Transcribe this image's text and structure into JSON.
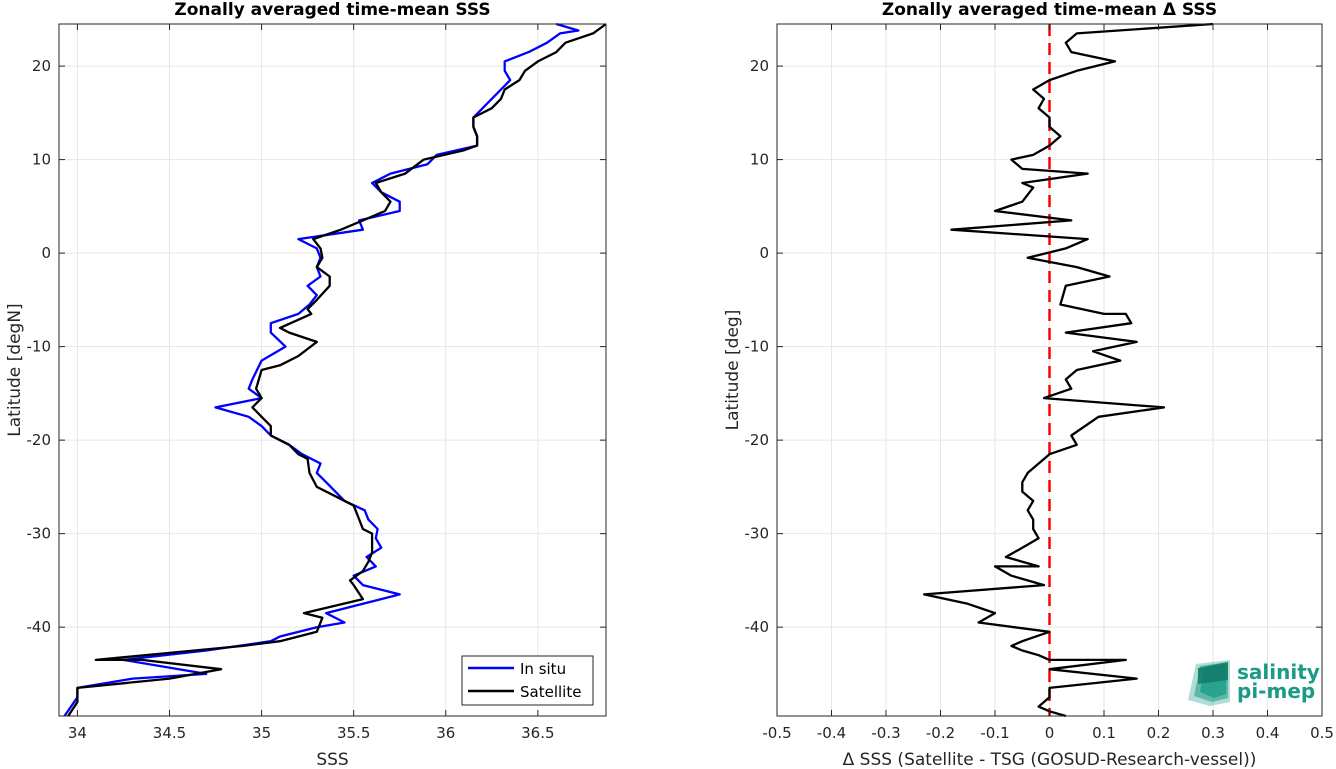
{
  "chart_data": [
    {
      "type": "line",
      "title": "Zonally averaged time-mean SSS",
      "xlabel": "SSS",
      "ylabel": "Latitude [degN]",
      "xlim": [
        33.9,
        36.87
      ],
      "ylim": [
        -49.5,
        24.5
      ],
      "xticks": [
        34,
        34.5,
        35,
        35.5,
        36,
        36.5
      ],
      "xtick_labels": [
        "34",
        "34.5",
        "35",
        "35.5",
        "36",
        "36.5"
      ],
      "yticks": [
        -40,
        -30,
        -20,
        -10,
        0,
        10,
        20
      ],
      "ytick_labels": [
        "-40",
        "-30",
        "-20",
        "-10",
        "0",
        "10",
        "20"
      ],
      "grid": true,
      "legend_position": "bottom-right",
      "colors": {
        "In situ": "#0000ff",
        "Satellite": "#000000"
      },
      "series": [
        {
          "name": "In situ",
          "points": [
            [
              33.93,
              -49.5
            ],
            [
              34.0,
              -47.5
            ],
            [
              34.0,
              -46.5
            ],
            [
              34.3,
              -45.5
            ],
            [
              34.7,
              -45.0
            ],
            [
              34.25,
              -43.5
            ],
            [
              34.7,
              -42.5
            ],
            [
              35.05,
              -41.5
            ],
            [
              35.1,
              -41.0
            ],
            [
              35.3,
              -40.0
            ],
            [
              35.45,
              -39.5
            ],
            [
              35.35,
              -38.5
            ],
            [
              35.55,
              -37.5
            ],
            [
              35.75,
              -36.5
            ],
            [
              35.55,
              -35.5
            ],
            [
              35.5,
              -34.5
            ],
            [
              35.62,
              -33.5
            ],
            [
              35.57,
              -32.5
            ],
            [
              35.65,
              -31.5
            ],
            [
              35.62,
              -30.5
            ],
            [
              35.63,
              -29.5
            ],
            [
              35.58,
              -28.5
            ],
            [
              35.56,
              -27.5
            ],
            [
              35.45,
              -26.5
            ],
            [
              35.4,
              -25.5
            ],
            [
              35.35,
              -24.5
            ],
            [
              35.3,
              -23.5
            ],
            [
              35.32,
              -22.5
            ],
            [
              35.22,
              -21.5
            ],
            [
              35.15,
              -20.5
            ],
            [
              35.05,
              -19.5
            ],
            [
              35.0,
              -18.5
            ],
            [
              34.93,
              -17.5
            ],
            [
              34.75,
              -16.5
            ],
            [
              35.0,
              -15.5
            ],
            [
              34.93,
              -14.5
            ],
            [
              34.95,
              -13.5
            ],
            [
              35.0,
              -11.5
            ],
            [
              35.13,
              -10.0
            ],
            [
              35.05,
              -8.5
            ],
            [
              35.05,
              -7.5
            ],
            [
              35.2,
              -6.5
            ],
            [
              35.26,
              -5.5
            ],
            [
              35.3,
              -4.5
            ],
            [
              35.25,
              -3.5
            ],
            [
              35.32,
              -2.5
            ],
            [
              35.3,
              -1.5
            ],
            [
              35.32,
              -0.5
            ],
            [
              35.3,
              0.5
            ],
            [
              35.2,
              1.5
            ],
            [
              35.55,
              2.5
            ],
            [
              35.53,
              3.5
            ],
            [
              35.75,
              4.5
            ],
            [
              35.75,
              5.5
            ],
            [
              35.65,
              6.5
            ],
            [
              35.6,
              7.5
            ],
            [
              35.7,
              8.5
            ],
            [
              35.9,
              9.5
            ],
            [
              35.95,
              10.5
            ],
            [
              36.17,
              11.5
            ],
            [
              36.17,
              12.5
            ],
            [
              36.15,
              13.5
            ],
            [
              36.15,
              14.5
            ],
            [
              36.2,
              15.5
            ],
            [
              36.25,
              16.5
            ],
            [
              36.3,
              17.5
            ],
            [
              36.35,
              18.5
            ],
            [
              36.32,
              19.5
            ],
            [
              36.32,
              20.5
            ],
            [
              36.45,
              21.5
            ],
            [
              36.55,
              22.5
            ],
            [
              36.62,
              23.5
            ],
            [
              36.72,
              23.8
            ],
            [
              36.6,
              24.5
            ]
          ]
        },
        {
          "name": "Satellite",
          "points": [
            [
              33.95,
              -49.5
            ],
            [
              34.0,
              -48.0
            ],
            [
              34.0,
              -46.5
            ],
            [
              34.5,
              -45.5
            ],
            [
              34.78,
              -44.5
            ],
            [
              34.35,
              -43.5
            ],
            [
              34.1,
              -43.5
            ],
            [
              34.9,
              -42.0
            ],
            [
              35.1,
              -41.5
            ],
            [
              35.3,
              -40.5
            ],
            [
              35.33,
              -39.0
            ],
            [
              35.23,
              -38.5
            ],
            [
              35.55,
              -37.0
            ],
            [
              35.5,
              -35.5
            ],
            [
              35.48,
              -35.0
            ],
            [
              35.55,
              -34.0
            ],
            [
              35.58,
              -33.0
            ],
            [
              35.6,
              -32.0
            ],
            [
              35.6,
              -30.0
            ],
            [
              35.55,
              -29.5
            ],
            [
              35.52,
              -28.0
            ],
            [
              35.5,
              -27.0
            ],
            [
              35.4,
              -26.0
            ],
            [
              35.3,
              -25.0
            ],
            [
              35.26,
              -23.5
            ],
            [
              35.25,
              -22.0
            ],
            [
              35.2,
              -21.5
            ],
            [
              35.15,
              -20.5
            ],
            [
              35.05,
              -19.5
            ],
            [
              35.05,
              -18.5
            ],
            [
              35.0,
              -17.5
            ],
            [
              34.95,
              -16.5
            ],
            [
              35.0,
              -15.5
            ],
            [
              34.97,
              -14.5
            ],
            [
              35.0,
              -12.5
            ],
            [
              35.1,
              -12.0
            ],
            [
              35.2,
              -11.0
            ],
            [
              35.3,
              -9.5
            ],
            [
              35.15,
              -8.5
            ],
            [
              35.1,
              -8.0
            ],
            [
              35.27,
              -6.5
            ],
            [
              35.25,
              -6.0
            ],
            [
              35.3,
              -5.0
            ],
            [
              35.37,
              -3.5
            ],
            [
              35.37,
              -2.5
            ],
            [
              35.3,
              -1.5
            ],
            [
              35.33,
              -0.5
            ],
            [
              35.32,
              0.5
            ],
            [
              35.28,
              1.5
            ],
            [
              35.43,
              2.5
            ],
            [
              35.55,
              3.5
            ],
            [
              35.67,
              4.5
            ],
            [
              35.7,
              5.5
            ],
            [
              35.65,
              6.5
            ],
            [
              35.62,
              7.5
            ],
            [
              35.78,
              8.5
            ],
            [
              35.88,
              10.0
            ],
            [
              36.1,
              11.0
            ],
            [
              36.17,
              11.5
            ],
            [
              36.17,
              12.5
            ],
            [
              36.15,
              13.5
            ],
            [
              36.15,
              14.5
            ],
            [
              36.25,
              15.5
            ],
            [
              36.3,
              16.5
            ],
            [
              36.32,
              17.5
            ],
            [
              36.4,
              18.5
            ],
            [
              36.43,
              19.5
            ],
            [
              36.5,
              20.5
            ],
            [
              36.6,
              21.5
            ],
            [
              36.65,
              22.5
            ],
            [
              36.8,
              23.5
            ],
            [
              36.87,
              24.5
            ]
          ]
        }
      ]
    },
    {
      "type": "line",
      "title": "Zonally averaged time-mean Δ SSS",
      "xlabel": "Δ SSS (Satellite - TSG (GOSUD-Research-vessel))",
      "ylabel": "Latitude [deg]",
      "xlim": [
        -0.5,
        0.5
      ],
      "ylim": [
        -49.5,
        24.5
      ],
      "xticks": [
        -0.5,
        -0.4,
        -0.3,
        -0.2,
        -0.1,
        0,
        0.1,
        0.2,
        0.3,
        0.4,
        0.5
      ],
      "xtick_labels": [
        "-0.5",
        "-0.4",
        "-0.3",
        "-0.2",
        "-0.1",
        "0",
        "0.1",
        "0.2",
        "0.3",
        "0.4",
        "0.5"
      ],
      "yticks": [
        -40,
        -30,
        -20,
        -10,
        0,
        10,
        20
      ],
      "ytick_labels": [
        "-40",
        "-30",
        "-20",
        "-10",
        "0",
        "10",
        "20"
      ],
      "grid": true,
      "reference_line": {
        "x": 0,
        "color": "#ff0000",
        "style": "dashed"
      },
      "colors": {
        "line": "#000000"
      },
      "series": [
        {
          "points": [
            [
              0.3,
              24.5
            ],
            [
              0.05,
              23.5
            ],
            [
              0.03,
              22.5
            ],
            [
              0.04,
              21.5
            ],
            [
              0.12,
              20.5
            ],
            [
              0.05,
              19.5
            ],
            [
              0.0,
              18.5
            ],
            [
              -0.03,
              17.5
            ],
            [
              -0.01,
              16.5
            ],
            [
              -0.02,
              15.5
            ],
            [
              0.0,
              14.5
            ],
            [
              0.0,
              13.5
            ],
            [
              0.02,
              12.5
            ],
            [
              0.0,
              11.5
            ],
            [
              -0.03,
              10.5
            ],
            [
              -0.07,
              10.0
            ],
            [
              -0.05,
              9.0
            ],
            [
              0.07,
              8.5
            ],
            [
              -0.05,
              7.5
            ],
            [
              -0.03,
              7.0
            ],
            [
              -0.05,
              5.5
            ],
            [
              -0.1,
              4.5
            ],
            [
              0.04,
              3.5
            ],
            [
              -0.18,
              2.5
            ],
            [
              0.07,
              1.5
            ],
            [
              0.03,
              0.5
            ],
            [
              -0.04,
              -0.5
            ],
            [
              0.05,
              -1.5
            ],
            [
              0.11,
              -2.5
            ],
            [
              0.03,
              -3.5
            ],
            [
              0.02,
              -5.5
            ],
            [
              0.1,
              -6.5
            ],
            [
              0.14,
              -6.5
            ],
            [
              0.15,
              -7.5
            ],
            [
              0.03,
              -8.5
            ],
            [
              0.16,
              -9.5
            ],
            [
              0.08,
              -10.5
            ],
            [
              0.13,
              -11.5
            ],
            [
              0.05,
              -12.5
            ],
            [
              0.03,
              -13.5
            ],
            [
              0.04,
              -14.5
            ],
            [
              -0.01,
              -15.5
            ],
            [
              0.21,
              -16.5
            ],
            [
              0.09,
              -17.5
            ],
            [
              0.04,
              -19.5
            ],
            [
              0.05,
              -20.5
            ],
            [
              0.0,
              -21.5
            ],
            [
              -0.04,
              -23.5
            ],
            [
              -0.05,
              -24.5
            ],
            [
              -0.05,
              -25.5
            ],
            [
              -0.03,
              -26.5
            ],
            [
              -0.04,
              -27.5
            ],
            [
              -0.03,
              -28.5
            ],
            [
              -0.03,
              -29.5
            ],
            [
              -0.02,
              -30.5
            ],
            [
              -0.05,
              -31.5
            ],
            [
              -0.08,
              -32.5
            ],
            [
              -0.02,
              -33.5
            ],
            [
              -0.1,
              -33.5
            ],
            [
              -0.07,
              -34.5
            ],
            [
              -0.01,
              -35.5
            ],
            [
              -0.23,
              -36.5
            ],
            [
              -0.15,
              -37.5
            ],
            [
              -0.1,
              -38.5
            ],
            [
              -0.13,
              -39.5
            ],
            [
              0.0,
              -40.5
            ],
            [
              -0.05,
              -41.5
            ],
            [
              -0.07,
              -42.0
            ],
            [
              -0.05,
              -42.5
            ],
            [
              -0.02,
              -43.0
            ],
            [
              0.0,
              -43.5
            ],
            [
              0.14,
              -43.5
            ],
            [
              0.0,
              -44.5
            ],
            [
              0.16,
              -45.5
            ],
            [
              0.0,
              -46.5
            ],
            [
              0.0,
              -47.5
            ],
            [
              -0.02,
              -48.5
            ],
            [
              0.0,
              -49.0
            ],
            [
              0.03,
              -49.5
            ]
          ]
        }
      ]
    }
  ],
  "legend": {
    "in_situ": "In situ",
    "satellite": "Satellite"
  },
  "logo": {
    "line1": "salinity",
    "line2": "pi-mep",
    "color": "#1a9b87"
  }
}
